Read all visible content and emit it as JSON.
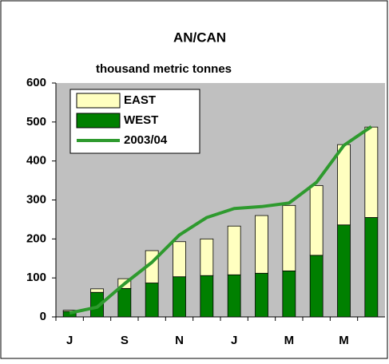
{
  "chart_data": {
    "type": "bar",
    "title": "AN/CAN",
    "subtitle": "thousand metric tonnes",
    "categories": [
      "J",
      null,
      "S",
      null,
      "N",
      null,
      "J",
      null,
      "M",
      null,
      "M",
      null
    ],
    "series": [
      {
        "name": "EAST",
        "color": "#ffffc0",
        "values": [
          3,
          9,
          25,
          83,
          90,
          94,
          125,
          148,
          168,
          179,
          206,
          232
        ]
      },
      {
        "name": "WEST",
        "color": "#008000",
        "values": [
          14,
          63,
          73,
          87,
          103,
          106,
          108,
          112,
          118,
          158,
          236,
          255
        ]
      },
      {
        "name": "2003/04",
        "color": "#2e9a2e",
        "type": "line",
        "values": [
          10,
          25,
          85,
          140,
          210,
          255,
          278,
          283,
          292,
          345,
          440,
          488
        ]
      }
    ],
    "ylim": [
      0,
      600
    ],
    "yticks": [
      0,
      100,
      200,
      300,
      400,
      500,
      600
    ],
    "legend": "upper left"
  }
}
